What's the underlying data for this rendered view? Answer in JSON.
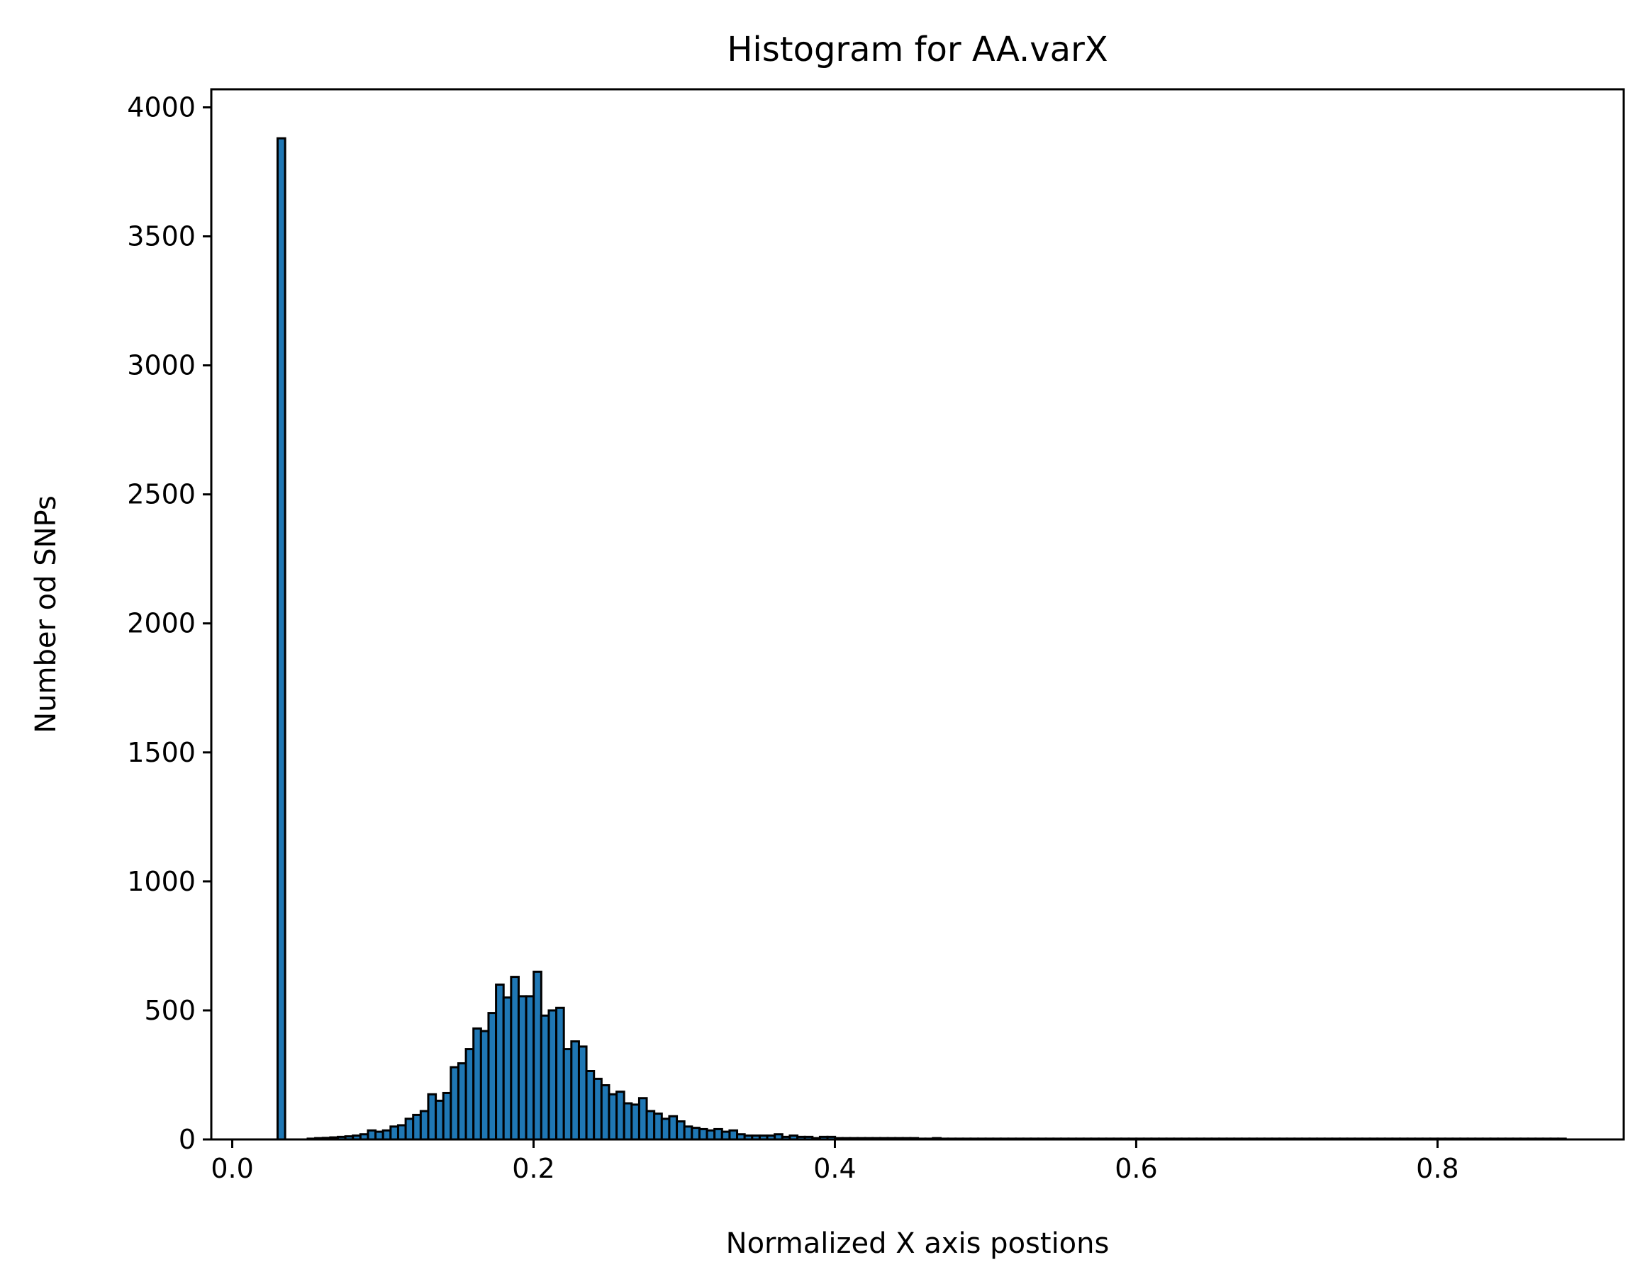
{
  "chart_data": {
    "type": "bar",
    "title": "Histogram for AA.varX",
    "xlabel": "Normalized X axis postions",
    "ylabel": "Number od SNPs",
    "xlim": [
      -0.0139,
      0.9236
    ],
    "ylim": [
      0,
      4070
    ],
    "grid": false,
    "legend": "none",
    "bar_color": "#1f77b4",
    "edge_color": "#000000",
    "x_ticks": [
      0.0,
      0.2,
      0.4,
      0.6,
      0.8
    ],
    "x_tick_labels": [
      "0.0",
      "0.2",
      "0.4",
      "0.6",
      "0.8"
    ],
    "y_ticks": [
      0,
      500,
      1000,
      1500,
      2000,
      2500,
      3000,
      3500,
      4000
    ],
    "y_tick_labels": [
      "0",
      "500",
      "1000",
      "1500",
      "2000",
      "2500",
      "3000",
      "3500",
      "4000"
    ],
    "bin_start": 0.0301,
    "bin_width": 0.005,
    "values": [
      3880,
      0,
      0,
      0,
      3,
      5,
      6,
      8,
      10,
      12,
      15,
      20,
      35,
      30,
      35,
      50,
      55,
      80,
      95,
      110,
      175,
      150,
      180,
      280,
      295,
      350,
      430,
      420,
      490,
      600,
      550,
      630,
      555,
      555,
      650,
      480,
      500,
      510,
      350,
      380,
      360,
      265,
      235,
      210,
      175,
      185,
      140,
      135,
      160,
      110,
      100,
      80,
      90,
      70,
      50,
      45,
      40,
      35,
      40,
      30,
      35,
      20,
      15,
      15,
      15,
      15,
      20,
      10,
      15,
      10,
      10,
      5,
      10,
      10,
      5,
      5,
      5,
      5,
      5,
      5,
      5,
      5,
      5,
      5,
      5,
      3,
      3,
      5,
      3,
      3,
      3,
      3,
      3,
      3,
      3,
      3,
      3,
      3,
      3,
      3,
      3,
      3,
      3,
      3,
      3,
      3,
      3,
      3,
      3,
      3,
      3,
      3,
      3,
      3,
      3,
      3,
      3,
      3,
      3,
      3,
      3,
      3,
      3,
      3,
      3,
      3,
      3,
      3,
      3,
      3,
      3,
      3,
      3,
      3,
      3,
      3,
      3,
      3,
      3,
      3,
      3,
      3,
      3,
      3,
      3,
      3,
      3,
      3,
      3,
      3,
      3,
      3,
      3,
      3,
      3,
      3,
      3,
      3,
      3,
      3,
      3,
      3,
      3,
      3,
      3,
      3,
      3,
      3,
      3,
      3,
      3
    ]
  }
}
